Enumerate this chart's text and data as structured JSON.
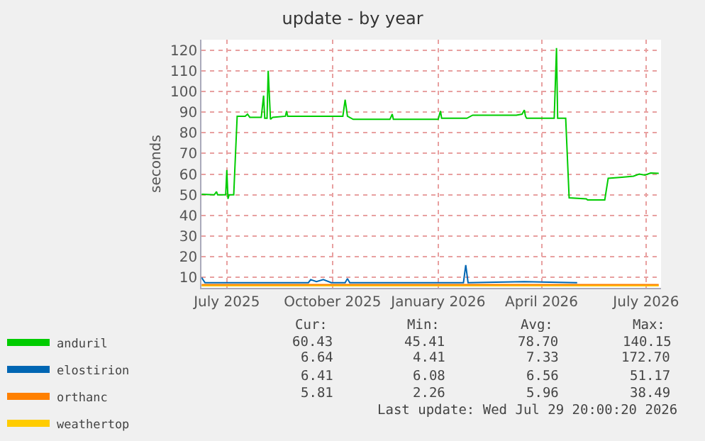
{
  "chart_data": {
    "type": "line",
    "title": "update - by year",
    "ylabel": "seconds",
    "xlim": [
      "2025-06-24",
      "2026-07-29"
    ],
    "xticks": [
      {
        "value": "2025-07-16",
        "label": "July 2025"
      },
      {
        "value": "2025-10-16",
        "label": "October 2025"
      },
      {
        "value": "2026-01-16",
        "label": "January 2026"
      },
      {
        "value": "2026-04-16",
        "label": "April 2026"
      },
      {
        "value": "2026-07-16",
        "label": "July 2026"
      }
    ],
    "ylim": [
      5,
      125
    ],
    "yticks": [
      10,
      20,
      30,
      40,
      50,
      60,
      70,
      80,
      90,
      100,
      110,
      120
    ],
    "grid": true,
    "legend": "bottom left",
    "marker": "none",
    "line_style": "solid",
    "series": [
      {
        "name": "anduril",
        "color": "#00cc00",
        "x": [
          "2025-06-24",
          "2025-07-05",
          "2025-07-07",
          "2025-07-08",
          "2025-07-15",
          "2025-07-16",
          "2025-07-17",
          "2025-07-18",
          "2025-07-22",
          "2025-07-25",
          "2025-08-01",
          "2025-08-03",
          "2025-08-05",
          "2025-08-15",
          "2025-08-17",
          "2025-08-18",
          "2025-08-20",
          "2025-08-21",
          "2025-08-23",
          "2025-08-25",
          "2025-09-05",
          "2025-09-06",
          "2025-09-07",
          "2025-10-25",
          "2025-10-27",
          "2025-10-29",
          "2025-11-03",
          "2025-12-05",
          "2025-12-07",
          "2025-12-08",
          "2026-01-16",
          "2026-01-18",
          "2026-01-19",
          "2026-02-10",
          "2026-02-15",
          "2026-03-10",
          "2026-03-25",
          "2026-03-30",
          "2026-04-01",
          "2026-04-02",
          "2026-04-03",
          "2026-04-27",
          "2026-04-29",
          "2026-04-30",
          "2026-05-07",
          "2026-05-10",
          "2026-05-25",
          "2026-05-26",
          "2026-06-10",
          "2026-06-13",
          "2026-06-25",
          "2026-07-05",
          "2026-07-10",
          "2026-07-15",
          "2026-07-20",
          "2026-07-27"
        ],
        "values": [
          50.3,
          50,
          51.5,
          50,
          50,
          62,
          48,
          50,
          50,
          88,
          88,
          89,
          87.5,
          87.5,
          98,
          87,
          87,
          110,
          86.5,
          87.5,
          88,
          90.5,
          88,
          88,
          96,
          88,
          86.5,
          86.5,
          89,
          86.5,
          86.5,
          90.5,
          87,
          87,
          88.5,
          88.5,
          88.5,
          89,
          91,
          88,
          87,
          87,
          121,
          87,
          87,
          48.5,
          48,
          47.5,
          47.5,
          58,
          58.5,
          59,
          60,
          59.5,
          60.5,
          60.4
        ]
      },
      {
        "name": "elostirion",
        "color": "#0066b3",
        "x": [
          "2025-06-24",
          "2025-06-27",
          "2025-09-25",
          "2025-09-27",
          "2025-10-02",
          "2025-10-08",
          "2025-10-15",
          "2025-10-27",
          "2025-10-29",
          "2025-10-31",
          "2026-02-07",
          "2026-02-09",
          "2026-02-11",
          "2026-04-01",
          "2026-05-17"
        ],
        "values": [
          10,
          7.5,
          7.5,
          9,
          8,
          9,
          7.5,
          7.5,
          9.5,
          7.5,
          7.5,
          16,
          7.5,
          8,
          7.5
        ]
      },
      {
        "name": "orthanc",
        "color": "#ff8000",
        "x": [
          "2025-06-24",
          "2025-10-01",
          "2026-01-01",
          "2026-04-01",
          "2026-07-27"
        ],
        "values": [
          6.5,
          6.5,
          6.5,
          6.5,
          6.5
        ]
      },
      {
        "name": "weathertop",
        "color": "#ffcc00",
        "x": [
          "2025-06-24",
          "2025-10-01",
          "2026-01-01",
          "2026-04-01",
          "2026-07-27"
        ],
        "values": [
          6,
          6,
          6,
          6,
          6
        ]
      }
    ],
    "annotations": [
      "Cur:",
      "Min:",
      "Avg:",
      "Max:",
      "60.43",
      "45.41",
      "78.70",
      "140.15",
      "6.64",
      "4.41",
      "7.33",
      "172.70",
      "6.41",
      "6.08",
      "6.56",
      "51.17",
      "5.81",
      "2.26",
      "5.96",
      "38.49",
      "Last update: Wed Jul 29 20:00:20 2026"
    ]
  }
}
